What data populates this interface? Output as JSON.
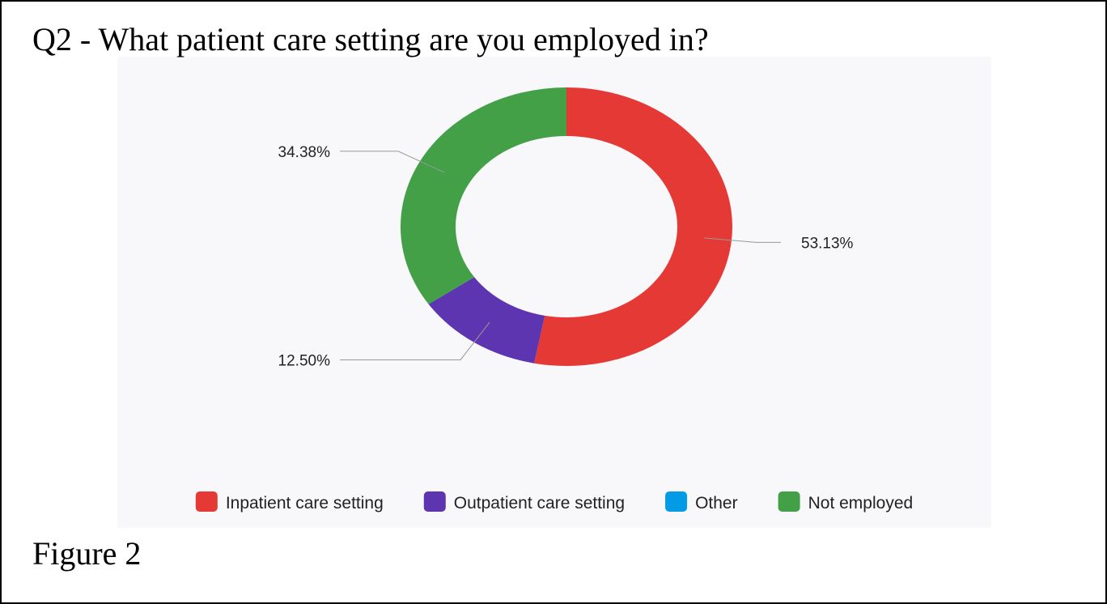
{
  "chart_data": {
    "type": "donut",
    "title": "Q2 - What patient care setting are you employed in?",
    "caption": "Figure 2",
    "categories": [
      "Inpatient care setting",
      "Outpatient care setting",
      "Other",
      "Not employed"
    ],
    "values": [
      53.13,
      12.5,
      0,
      34.38
    ],
    "value_labels": [
      "53.13%",
      "12.50%",
      null,
      "34.38%"
    ],
    "colors": [
      "#e53935",
      "#5e35b1",
      "#039be5",
      "#43a047"
    ],
    "legend": "bottom"
  }
}
